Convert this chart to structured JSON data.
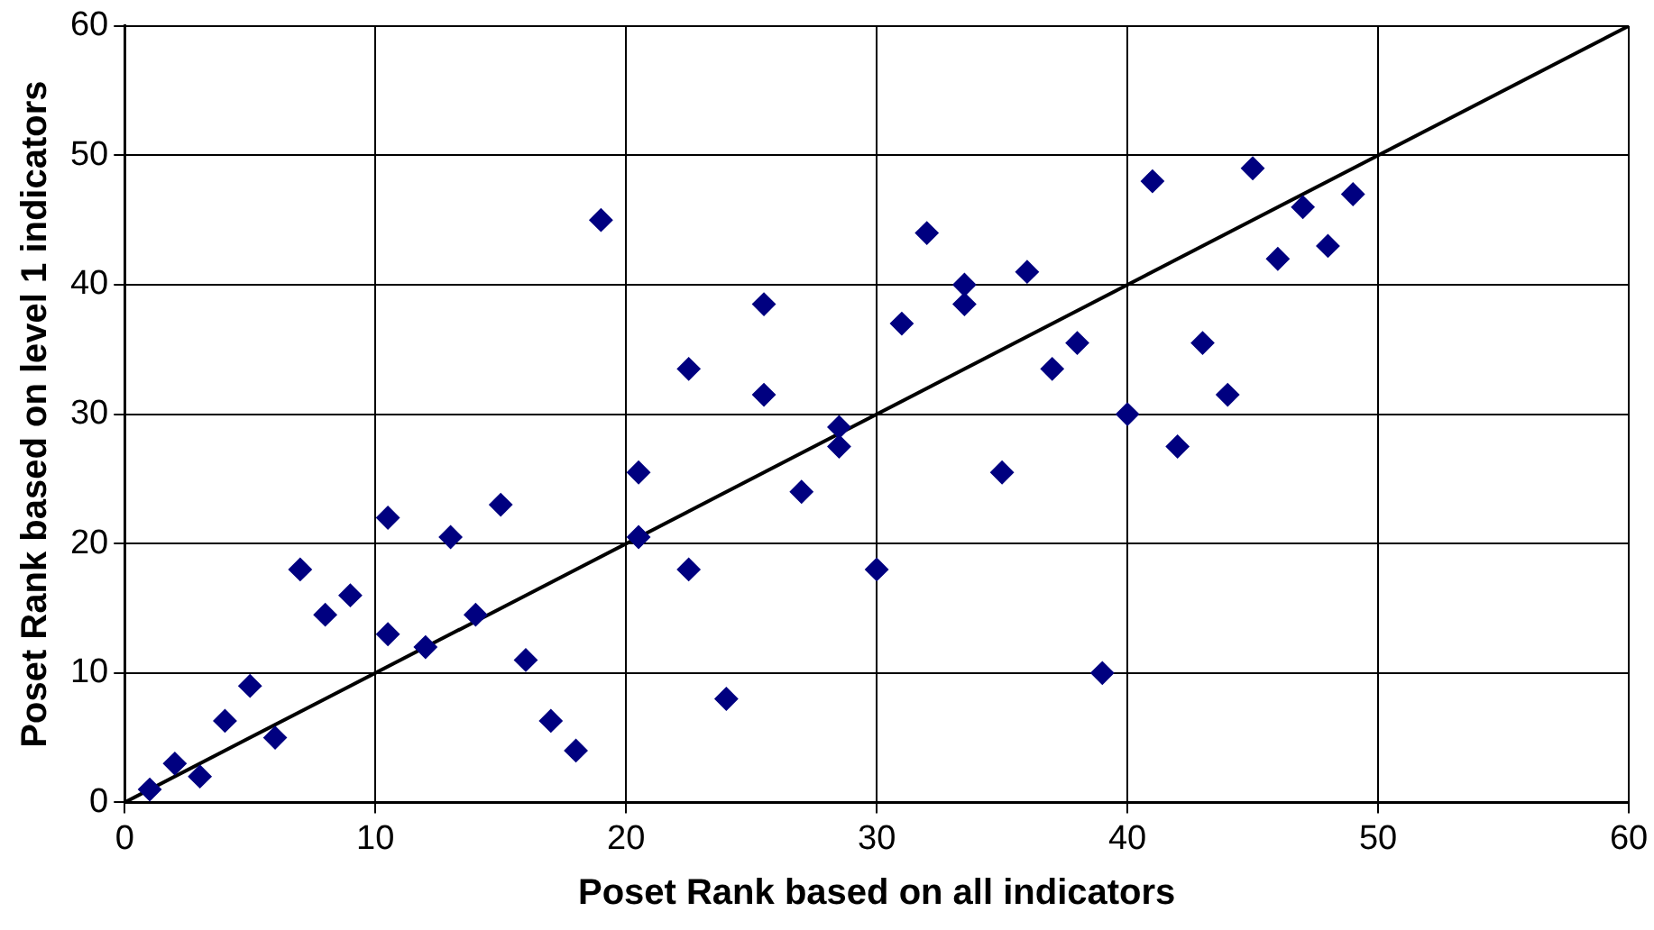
{
  "chart_data": {
    "type": "scatter",
    "xlabel": "Poset Rank based on all indicators",
    "ylabel": "Poset Rank based on level 1 indicators",
    "marker": "diamond",
    "grid": true,
    "legend": false,
    "xlim": [
      0,
      60
    ],
    "xticks": [
      0,
      10,
      20,
      30,
      40,
      50,
      60
    ],
    "ylim": [
      0,
      60
    ],
    "yticks": [
      0,
      10,
      20,
      30,
      40,
      50,
      60
    ],
    "series": [
      {
        "color": "#000080",
        "x": [
          1,
          2,
          3,
          4,
          5,
          6,
          7,
          8,
          9,
          10.5,
          10.5,
          12,
          13,
          14,
          15,
          16,
          17,
          18,
          19,
          20.5,
          20.5,
          22.5,
          22.5,
          24,
          25.5,
          25.5,
          27,
          28.5,
          28.5,
          30,
          31,
          32,
          33.5,
          33.5,
          35,
          36,
          37,
          38,
          39,
          40,
          41,
          42,
          43,
          44,
          45,
          46,
          47,
          48,
          49
        ],
        "values": [
          1,
          3,
          2,
          6.3,
          9,
          5,
          18,
          14.5,
          16,
          22,
          13,
          12,
          20.5,
          14.5,
          23,
          11,
          6.3,
          4,
          45,
          25.5,
          20.5,
          33.5,
          18,
          8,
          38.5,
          31.5,
          24,
          29,
          27.5,
          18,
          37,
          44,
          40,
          38.5,
          25.5,
          41,
          33.5,
          35.5,
          10,
          30,
          48,
          27.5,
          35.5,
          31.5,
          49,
          42,
          46,
          43,
          47
        ]
      },
      {
        "type": "line",
        "marker": "none",
        "color": "#000000",
        "x": [
          0,
          60
        ],
        "values": [
          0,
          60
        ]
      }
    ]
  }
}
